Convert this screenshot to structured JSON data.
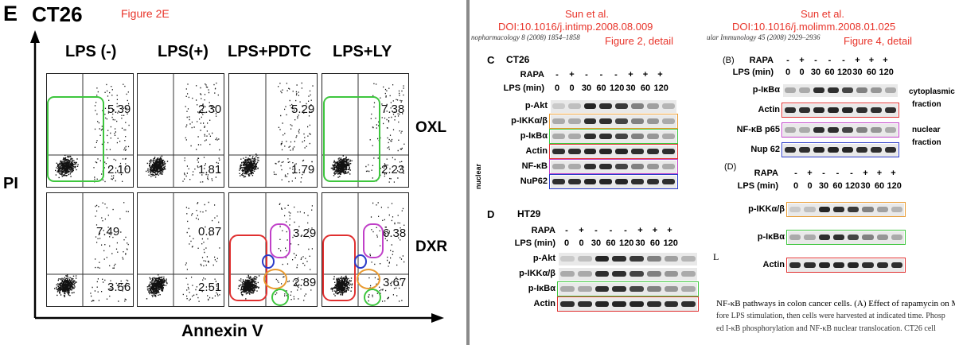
{
  "left": {
    "panel_letter": "E",
    "cell_line": "CT26",
    "fig_note": "Figure 2E",
    "columns": [
      "LPS (-)",
      "LPS(+)",
      "LPS+PDTC",
      "LPS+LY"
    ],
    "rows": [
      "OXL",
      "DXR"
    ],
    "y_axis": "PI",
    "x_axis": "Annexin V",
    "values": {
      "oxl_upper": [
        "5.39",
        "2.30",
        "5.29",
        "7.38"
      ],
      "oxl_lower": [
        "2.10",
        "1.81",
        "1.79",
        "2.23"
      ],
      "dxr_upper": [
        "7.49",
        "0.87",
        "3.29",
        "6.38"
      ],
      "dxr_lower": [
        "3.56",
        "2.51",
        "2.89",
        "3.67"
      ]
    }
  },
  "mid": {
    "ref_author": "Sun et al.",
    "ref_doi": "DOI:10.1016/j.intimp.2008.08.009",
    "journal": "nopharmacology 8 (2008) 1854–1858",
    "figure_detail": "Figure 2, detail",
    "panel_c": "C",
    "panel_c_cell": "CT26",
    "panel_d": "D",
    "panel_d_cell": "HT29",
    "rapa_label": "RAPA",
    "lps_label": "LPS (min)",
    "rapa_signs": [
      "-",
      "+",
      "-",
      "-",
      "-",
      "+",
      "+",
      "+"
    ],
    "lps_times": [
      "0",
      "0",
      "30",
      "60",
      "120",
      "30",
      "60",
      "120"
    ],
    "c_rows": [
      "p-Akt",
      "p-IKKα/β",
      "p-IκBα",
      "Actin",
      "NF-κB",
      "NuP62"
    ],
    "nuclear_label": "nuclear",
    "d_rows": [
      "p-Akt",
      "p-IKKα/β",
      "p-IκBα",
      "Actin"
    ]
  },
  "right": {
    "ref_author": "Sun et al.",
    "ref_doi": "DOI:10.1016/j.molimm.2008.01.025",
    "journal": "ular Immunology 45 (2008) 2929–2936",
    "figure_detail": "Figure 4, detail",
    "panel_b": "(B)",
    "panel_d": "(D)",
    "rapa_label": "RAPA",
    "lps_label": "LPS (min)",
    "rapa_signs": [
      "-",
      "+",
      "-",
      "-",
      "-",
      "+",
      "+",
      "+"
    ],
    "lps_times": [
      "0",
      "0",
      "30",
      "60",
      "120",
      "30",
      "60",
      "120"
    ],
    "b_rows": [
      "p-IκBα",
      "Actin",
      "NF-κB p65",
      "Nup 62"
    ],
    "cyto_label_1": "cytoplasmic",
    "cyto_label_2": "fraction",
    "nuc_label_1": "nuclear",
    "nuc_label_2": "fraction",
    "d_rows": [
      "p-IKKα/β",
      "p-IκBα",
      "Actin"
    ],
    "caption_1": "NF-κB pathways in colon cancer cells. (A) Effect of rapamycin on MA",
    "caption_2": "fore LPS stimulation, then cells were harvested at indicated time. Phosp",
    "caption_3": "ed I-κB phosphorylation and NF-κB nuclear translocation. CT26 cell",
    "bracket": "L"
  },
  "colors": {
    "annot_red": "#e8342a",
    "box_green": "#3ec63e",
    "box_red": "#e03030",
    "box_magenta": "#c040c8",
    "box_blue": "#2a3ac8",
    "box_orange": "#e89a30"
  }
}
